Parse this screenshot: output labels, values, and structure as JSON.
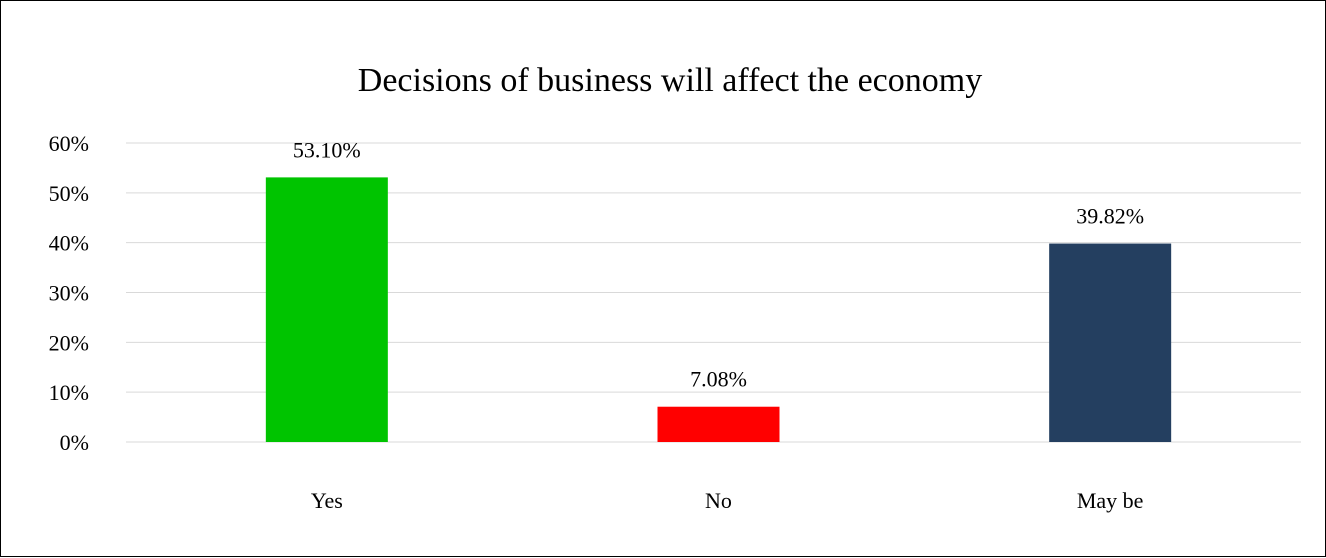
{
  "chart_data": {
    "type": "bar",
    "title": "Decisions of business will affect the economy",
    "xlabel": "",
    "ylabel": "",
    "categories": [
      "Yes",
      "No",
      "May be"
    ],
    "values": [
      53.1,
      7.08,
      39.82
    ],
    "data_labels": [
      "53.10%",
      "7.08%",
      "39.82%"
    ],
    "colors": [
      "#00c400",
      "#ff0000",
      "#243f60"
    ],
    "ylim": [
      0,
      60
    ],
    "yticks": [
      0,
      10,
      20,
      30,
      40,
      50,
      60
    ],
    "ytick_labels": [
      "0%",
      "10%",
      "20%",
      "30%",
      "40%",
      "50%",
      "60%"
    ],
    "gridlines": true,
    "gridline_color": "#d9d9d9",
    "legend": "none"
  }
}
